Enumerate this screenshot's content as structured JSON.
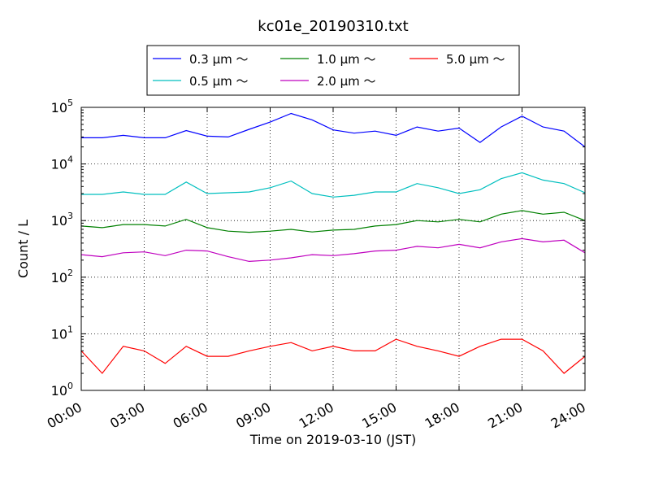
{
  "chart_data": {
    "type": "line",
    "title": "kc01e_20190310.txt",
    "xlabel": "Time on 2019-03-10 (JST)",
    "ylabel": "Count / L",
    "yscale": "log",
    "ylim": [
      1,
      100000
    ],
    "xlim": [
      "2019-03-10 00:00",
      "2019-03-11 00:00"
    ],
    "x_ticks": [
      "00:00",
      "03:00",
      "06:00",
      "09:00",
      "12:00",
      "15:00",
      "18:00",
      "21:00",
      "24:00"
    ],
    "y_ticks": [
      {
        "base": "10",
        "exp": "0"
      },
      {
        "base": "10",
        "exp": "1"
      },
      {
        "base": "10",
        "exp": "2"
      },
      {
        "base": "10",
        "exp": "3"
      },
      {
        "base": "10",
        "exp": "4"
      },
      {
        "base": "10",
        "exp": "5"
      }
    ],
    "grid": true,
    "legend_position": "top-center",
    "x_time": [
      "00:00",
      "01:00",
      "02:00",
      "03:00",
      "04:00",
      "05:00",
      "06:00",
      "07:00",
      "08:00",
      "09:00",
      "10:00",
      "11:00",
      "12:00",
      "13:00",
      "14:00",
      "15:00",
      "16:00",
      "17:00",
      "18:00",
      "19:00",
      "20:00",
      "21:00",
      "22:00",
      "23:00",
      "24:00"
    ],
    "series": [
      {
        "name": "0.3 μm ～",
        "color": "#0000ff",
        "values": [
          29000,
          29000,
          32000,
          29000,
          29000,
          39000,
          31000,
          30000,
          41000,
          55000,
          78000,
          60000,
          40000,
          35000,
          38000,
          32000,
          45000,
          38000,
          43000,
          24000,
          45000,
          70000,
          45000,
          38000,
          20000
        ]
      },
      {
        "name": "0.5 μm ～",
        "color": "#00bfbf",
        "values": [
          2900,
          2900,
          3200,
          2900,
          2900,
          4800,
          3000,
          3100,
          3200,
          3800,
          5000,
          3000,
          2600,
          2800,
          3200,
          3200,
          4500,
          3800,
          3000,
          3500,
          5500,
          7000,
          5200,
          4500,
          3100
        ]
      },
      {
        "name": "1.0 μm ～",
        "color": "#008000",
        "values": [
          800,
          750,
          850,
          850,
          800,
          1050,
          750,
          650,
          620,
          650,
          700,
          630,
          680,
          700,
          800,
          850,
          1000,
          950,
          1050,
          950,
          1300,
          1500,
          1300,
          1400,
          1000
        ]
      },
      {
        "name": "2.0 μm ～",
        "color": "#bf00bf",
        "values": [
          250,
          230,
          270,
          280,
          240,
          300,
          290,
          230,
          190,
          200,
          220,
          250,
          240,
          260,
          290,
          300,
          350,
          330,
          380,
          330,
          420,
          480,
          420,
          450,
          270
        ]
      },
      {
        "name": "5.0 μm ～",
        "color": "#ff0000",
        "values": [
          5,
          2,
          6,
          5,
          3,
          6,
          4,
          4,
          5,
          6,
          7,
          5,
          6,
          5,
          5,
          8,
          6,
          5,
          4,
          6,
          8,
          8,
          5,
          2,
          4
        ]
      }
    ]
  }
}
